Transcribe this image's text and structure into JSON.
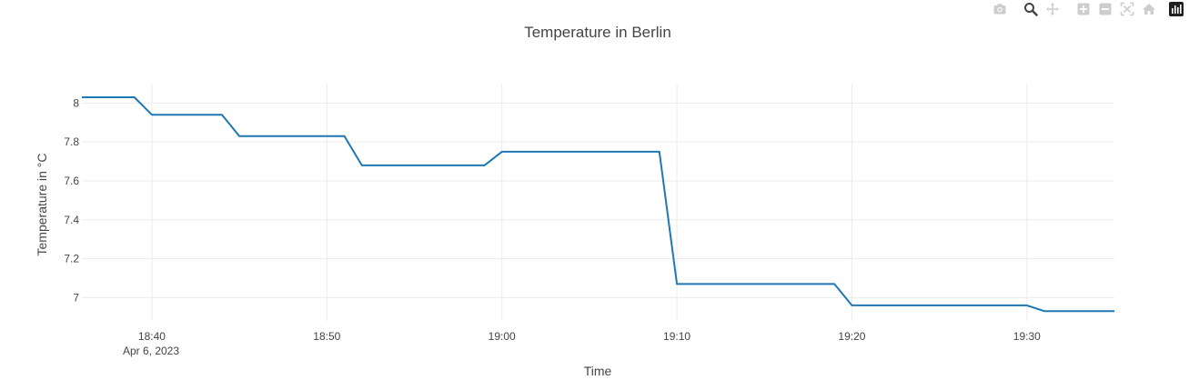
{
  "chart_data": {
    "type": "line",
    "title": "Temperature in Berlin",
    "xlabel": "Time",
    "ylabel": "Temperature in °C",
    "x_date_label": "Apr 6, 2023",
    "x_ticks": [
      "18:40",
      "18:50",
      "19:00",
      "19:10",
      "19:20",
      "19:30"
    ],
    "y_ticks": [
      "7",
      "7.2",
      "7.4",
      "7.6",
      "7.8",
      "8"
    ],
    "xlim": [
      "2023-04-06 18:36",
      "2023-04-06 19:35"
    ],
    "ylim": [
      6.88,
      8.1
    ],
    "grid": true,
    "line_color": "#1f77b4",
    "series": [
      {
        "points": [
          [
            "2023-04-06 18:36",
            8.03
          ],
          [
            "2023-04-06 18:39",
            8.03
          ],
          [
            "2023-04-06 18:40",
            7.94
          ],
          [
            "2023-04-06 18:44",
            7.94
          ],
          [
            "2023-04-06 18:45",
            7.83
          ],
          [
            "2023-04-06 18:51",
            7.83
          ],
          [
            "2023-04-06 18:52",
            7.68
          ],
          [
            "2023-04-06 18:59",
            7.68
          ],
          [
            "2023-04-06 19:00",
            7.75
          ],
          [
            "2023-04-06 19:09",
            7.75
          ],
          [
            "2023-04-06 19:10",
            7.07
          ],
          [
            "2023-04-06 19:19",
            7.07
          ],
          [
            "2023-04-06 19:20",
            6.96
          ],
          [
            "2023-04-06 19:30",
            6.96
          ],
          [
            "2023-04-06 19:31",
            6.93
          ],
          [
            "2023-04-06 19:35",
            6.93
          ]
        ]
      }
    ]
  },
  "modebar": {
    "icons": [
      "camera-icon",
      "zoom-icon",
      "pan-icon",
      "zoom-in-icon",
      "zoom-out-icon",
      "autoscale-icon",
      "reset-axes-icon",
      "plotly-logo-icon"
    ]
  }
}
